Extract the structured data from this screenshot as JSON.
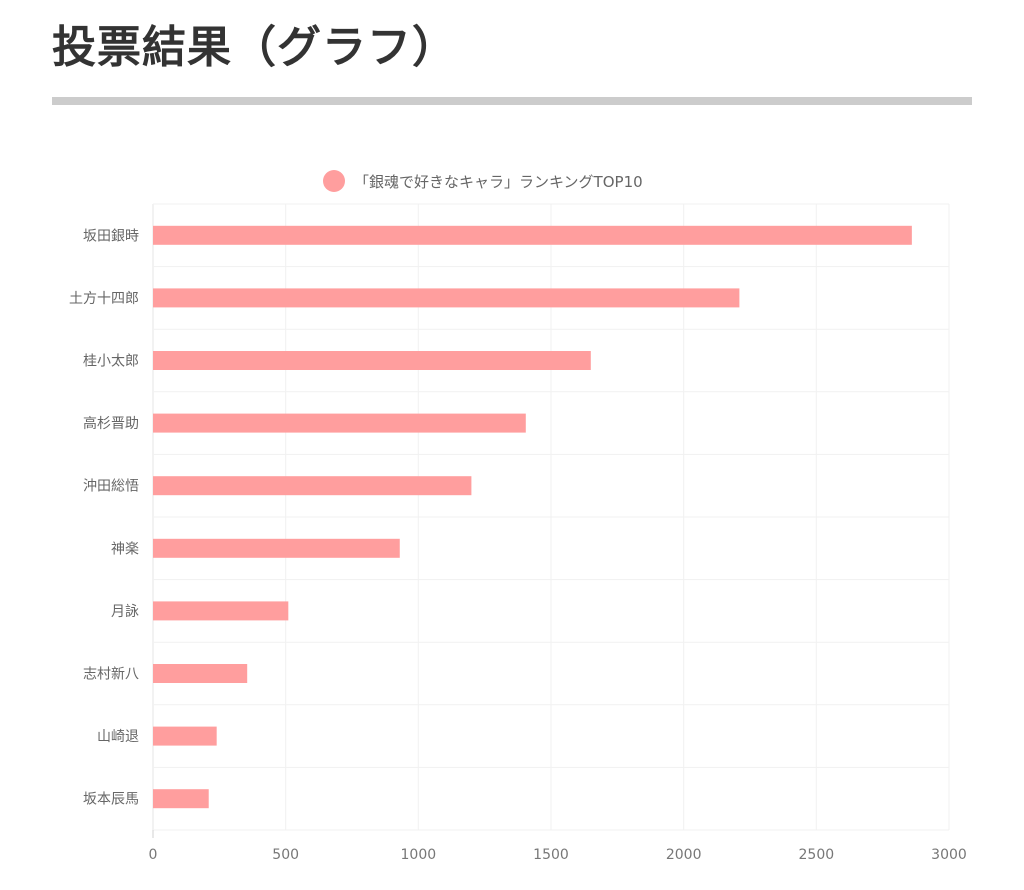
{
  "page": {
    "title": "投票結果（グラフ）"
  },
  "chart_data": {
    "type": "bar",
    "orientation": "horizontal",
    "legend_position": "top-center",
    "grid": true,
    "categories": [
      "坂田銀時",
      "土方十四郎",
      "桂小太郎",
      "高杉晋助",
      "沖田総悟",
      "神楽",
      "月詠",
      "志村新八",
      "山崎退",
      "坂本辰馬"
    ],
    "series": [
      {
        "name": "「銀魂で好きなキャラ」ランキングTOP10",
        "color": "#ff9e9e",
        "values": [
          2860,
          2210,
          1650,
          1405,
          1200,
          930,
          510,
          355,
          240,
          210
        ]
      }
    ],
    "xlim": [
      0,
      3000
    ],
    "xticks": [
      0,
      500,
      1000,
      1500,
      2000,
      2500,
      3000
    ]
  }
}
